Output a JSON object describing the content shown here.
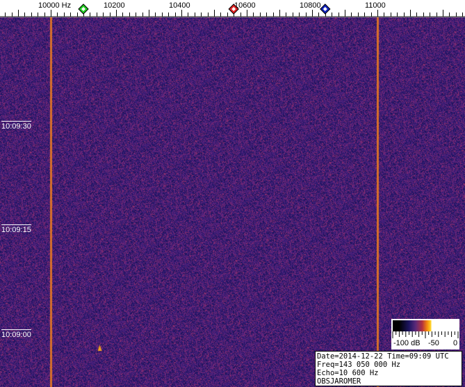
{
  "chart_data": {
    "type": "heatmap",
    "xunit": "Hz",
    "x_ticks": [
      10000,
      10200,
      10400,
      10600,
      10800,
      11000
    ],
    "x_tick_labels": [
      "10000  Hz",
      "10200",
      "10400",
      "10600",
      "10800",
      "11000"
    ],
    "xlim": [
      9845,
      11270
    ],
    "minor_tick_step_hz": 20,
    "time_labels": [
      "10:09:30",
      "10:09:15",
      "10:09:00"
    ],
    "markers": [
      {
        "color": "#22cc22",
        "freq": 10100
      },
      {
        "color": "#dd2222",
        "freq": 10560
      },
      {
        "color": "#1122bb",
        "freq": 10840
      }
    ],
    "carrier_lines": [
      10000,
      11000
    ],
    "echo_blip": {
      "freq": 10150,
      "time": "10:08:58"
    },
    "colorscale": {
      "labels": [
        "-100 dB",
        "-50",
        "0"
      ],
      "range_db": [
        -100,
        0
      ]
    },
    "background_color": "#3a1f78"
  },
  "info": {
    "line1": "Date=2014-12-22 Time=09:09 UTC",
    "line2": "Freq=143 050 000 Hz",
    "line3": "Echo=10 600 Hz",
    "line4": "OBSJAROMER"
  }
}
